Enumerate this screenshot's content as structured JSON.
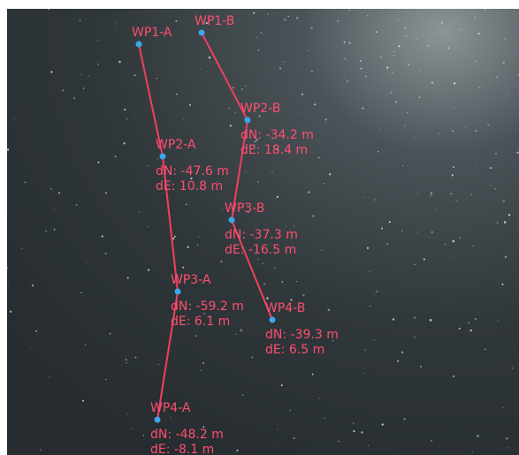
{
  "routes": [
    {
      "waypoints": [
        {
          "label": "WP1-A"
        },
        {
          "label": "WP2-A",
          "dN": "dN: -47.6 m",
          "dE": "dE: 10.8 m"
        },
        {
          "label": "WP3-A",
          "dN": "dN: -59.2 m",
          "dE": "dE: 6.1 m"
        },
        {
          "label": "WP4-A",
          "dN": "dN: -48.2 m",
          "dE": "dE: -8.1 m"
        }
      ]
    },
    {
      "waypoints": [
        {
          "label": "WP1-B"
        },
        {
          "label": "WP2-B",
          "dN": "dN: -34.2 m",
          "dE": "dE: 18.4 m"
        },
        {
          "label": "WP3-B",
          "dN": "dN: -37.3 m",
          "dE": "dE: -16.5 m"
        },
        {
          "label": "WP4-B",
          "dN": "dN: -39.3 m",
          "dE": "dE: 6.5 m"
        }
      ]
    }
  ]
}
